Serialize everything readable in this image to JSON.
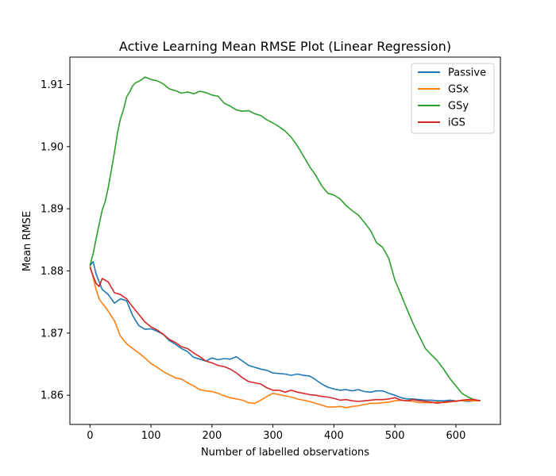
{
  "chart_data": {
    "type": "line",
    "title": "Active Learning Mean RMSE Plot (Linear Regression)",
    "xlabel": "Number of labelled observations",
    "ylabel": "Mean RMSE",
    "xlim": [
      -33,
      673
    ],
    "ylim": [
      1.8553,
      1.9144
    ],
    "xticks": [
      0,
      100,
      200,
      300,
      400,
      500,
      600
    ],
    "xtick_labels": [
      "0",
      "100",
      "200",
      "300",
      "400",
      "500",
      "600"
    ],
    "yticks": [
      1.86,
      1.87,
      1.88,
      1.89,
      1.9,
      1.91
    ],
    "ytick_labels": [
      "1.86",
      "1.87",
      "1.88",
      "1.89",
      "1.90",
      "1.91"
    ],
    "grid": false,
    "legend_position": "upper right",
    "series": [
      {
        "name": "Passive",
        "color": "#1f77b4",
        "x": [
          0,
          5,
          10,
          20,
          30,
          40,
          50,
          60,
          70,
          80,
          90,
          100,
          110,
          120,
          130,
          140,
          150,
          160,
          170,
          180,
          190,
          200,
          210,
          220,
          230,
          240,
          250,
          260,
          270,
          280,
          290,
          300,
          310,
          320,
          330,
          340,
          350,
          360,
          370,
          380,
          390,
          400,
          410,
          420,
          430,
          440,
          450,
          460,
          470,
          480,
          490,
          500,
          510,
          520,
          530,
          540,
          550,
          560,
          570,
          580,
          590,
          600,
          610,
          620,
          630,
          640
        ],
        "y": [
          1.8808,
          1.8815,
          1.8795,
          1.877,
          1.8762,
          1.8748,
          1.8755,
          1.8752,
          1.8728,
          1.8712,
          1.8706,
          1.8707,
          1.8703,
          1.8698,
          1.8688,
          1.8682,
          1.8675,
          1.867,
          1.8661,
          1.8658,
          1.8655,
          1.866,
          1.8657,
          1.8659,
          1.8658,
          1.8662,
          1.8655,
          1.8648,
          1.8645,
          1.8642,
          1.864,
          1.8636,
          1.8635,
          1.8634,
          1.8632,
          1.8634,
          1.8632,
          1.8631,
          1.8625,
          1.8618,
          1.8613,
          1.861,
          1.8608,
          1.8609,
          1.8607,
          1.8609,
          1.8606,
          1.8605,
          1.8607,
          1.8607,
          1.8603,
          1.86,
          1.8596,
          1.8594,
          1.8594,
          1.8593,
          1.8592,
          1.8592,
          1.8591,
          1.8591,
          1.8592,
          1.8591,
          1.8591,
          1.859,
          1.8591,
          1.8591
        ]
      },
      {
        "name": "GSx",
        "color": "#ff7f0e",
        "x": [
          0,
          5,
          10,
          15,
          20,
          25,
          30,
          40,
          50,
          60,
          70,
          80,
          90,
          100,
          110,
          120,
          130,
          140,
          150,
          160,
          170,
          180,
          190,
          200,
          210,
          220,
          230,
          240,
          250,
          260,
          270,
          280,
          290,
          300,
          310,
          320,
          330,
          340,
          350,
          360,
          370,
          380,
          390,
          400,
          410,
          420,
          430,
          440,
          450,
          460,
          470,
          480,
          490,
          500,
          510,
          520,
          530,
          540,
          550,
          560,
          570,
          580,
          590,
          600,
          610,
          620,
          630,
          640
        ],
        "y": [
          1.8808,
          1.879,
          1.877,
          1.8755,
          1.8748,
          1.8742,
          1.8735,
          1.872,
          1.8695,
          1.8683,
          1.8675,
          1.8668,
          1.866,
          1.8651,
          1.8645,
          1.8638,
          1.8633,
          1.8628,
          1.8626,
          1.862,
          1.8615,
          1.8609,
          1.8607,
          1.8606,
          1.8603,
          1.8599,
          1.8596,
          1.8594,
          1.8592,
          1.8588,
          1.8587,
          1.8592,
          1.8598,
          1.8603,
          1.8601,
          1.8599,
          1.8597,
          1.8594,
          1.8592,
          1.859,
          1.8587,
          1.8584,
          1.8581,
          1.8581,
          1.8582,
          1.858,
          1.8582,
          1.8583,
          1.8585,
          1.8587,
          1.8587,
          1.8588,
          1.8589,
          1.8591,
          1.8592,
          1.8591,
          1.859,
          1.8588,
          1.8588,
          1.8588,
          1.8589,
          1.8588,
          1.8589,
          1.8591,
          1.8591,
          1.8591,
          1.8591,
          1.8591
        ]
      },
      {
        "name": "GSy",
        "color": "#2ca02c",
        "x": [
          0,
          5,
          10,
          15,
          20,
          25,
          30,
          35,
          40,
          45,
          50,
          55,
          60,
          65,
          70,
          75,
          80,
          85,
          90,
          95,
          100,
          110,
          120,
          130,
          140,
          150,
          160,
          170,
          180,
          190,
          200,
          210,
          220,
          230,
          240,
          250,
          260,
          270,
          280,
          290,
          300,
          310,
          320,
          330,
          340,
          350,
          360,
          370,
          380,
          390,
          400,
          410,
          420,
          430,
          440,
          450,
          460,
          470,
          480,
          490,
          500,
          510,
          520,
          530,
          540,
          550,
          560,
          570,
          580,
          590,
          600,
          610,
          620,
          630,
          640
        ],
        "y": [
          1.8809,
          1.8827,
          1.8852,
          1.8875,
          1.8898,
          1.8912,
          1.8935,
          1.8962,
          1.899,
          1.9022,
          1.9045,
          1.906,
          1.908,
          1.9088,
          1.9098,
          1.9103,
          1.9105,
          1.9108,
          1.9112,
          1.911,
          1.9108,
          1.9106,
          1.9101,
          1.9093,
          1.909,
          1.9086,
          1.9088,
          1.9085,
          1.9089,
          1.9087,
          1.9083,
          1.9081,
          1.907,
          1.9065,
          1.9059,
          1.9057,
          1.9058,
          1.9053,
          1.905,
          1.9043,
          1.9038,
          1.9032,
          1.9025,
          1.9015,
          1.9001,
          1.8985,
          1.8968,
          1.8954,
          1.8937,
          1.8925,
          1.8922,
          1.8916,
          1.8905,
          1.8897,
          1.889,
          1.8878,
          1.8865,
          1.8845,
          1.8838,
          1.882,
          1.8785,
          1.8762,
          1.8738,
          1.8715,
          1.8695,
          1.8675,
          1.8665,
          1.8655,
          1.8642,
          1.8627,
          1.8615,
          1.8603,
          1.8597,
          1.8593,
          1.8591
        ]
      },
      {
        "name": "iGS",
        "color": "#d62728",
        "x": [
          0,
          5,
          10,
          15,
          20,
          30,
          40,
          50,
          60,
          70,
          80,
          90,
          100,
          110,
          120,
          130,
          140,
          150,
          160,
          170,
          180,
          190,
          200,
          210,
          220,
          230,
          240,
          250,
          260,
          270,
          280,
          290,
          300,
          310,
          320,
          330,
          340,
          350,
          360,
          370,
          380,
          390,
          400,
          410,
          420,
          430,
          440,
          450,
          460,
          470,
          480,
          490,
          500,
          510,
          520,
          530,
          540,
          550,
          560,
          570,
          580,
          590,
          600,
          610,
          620,
          630,
          640
        ],
        "y": [
          1.8806,
          1.8792,
          1.878,
          1.8775,
          1.8788,
          1.8782,
          1.8765,
          1.8762,
          1.8755,
          1.8742,
          1.873,
          1.8718,
          1.871,
          1.8705,
          1.8698,
          1.869,
          1.8685,
          1.8678,
          1.8675,
          1.8668,
          1.8662,
          1.8655,
          1.8652,
          1.8648,
          1.8646,
          1.8642,
          1.8636,
          1.8628,
          1.8622,
          1.862,
          1.8618,
          1.8612,
          1.8608,
          1.8608,
          1.8605,
          1.8608,
          1.8605,
          1.8603,
          1.8601,
          1.86,
          1.8598,
          1.8597,
          1.8595,
          1.8592,
          1.8593,
          1.8591,
          1.859,
          1.8591,
          1.8592,
          1.8593,
          1.8593,
          1.8594,
          1.8596,
          1.8592,
          1.8591,
          1.8593,
          1.8591,
          1.859,
          1.8589,
          1.8587,
          1.8589,
          1.859,
          1.859,
          1.8592,
          1.8593,
          1.8593,
          1.8591
        ]
      }
    ]
  }
}
